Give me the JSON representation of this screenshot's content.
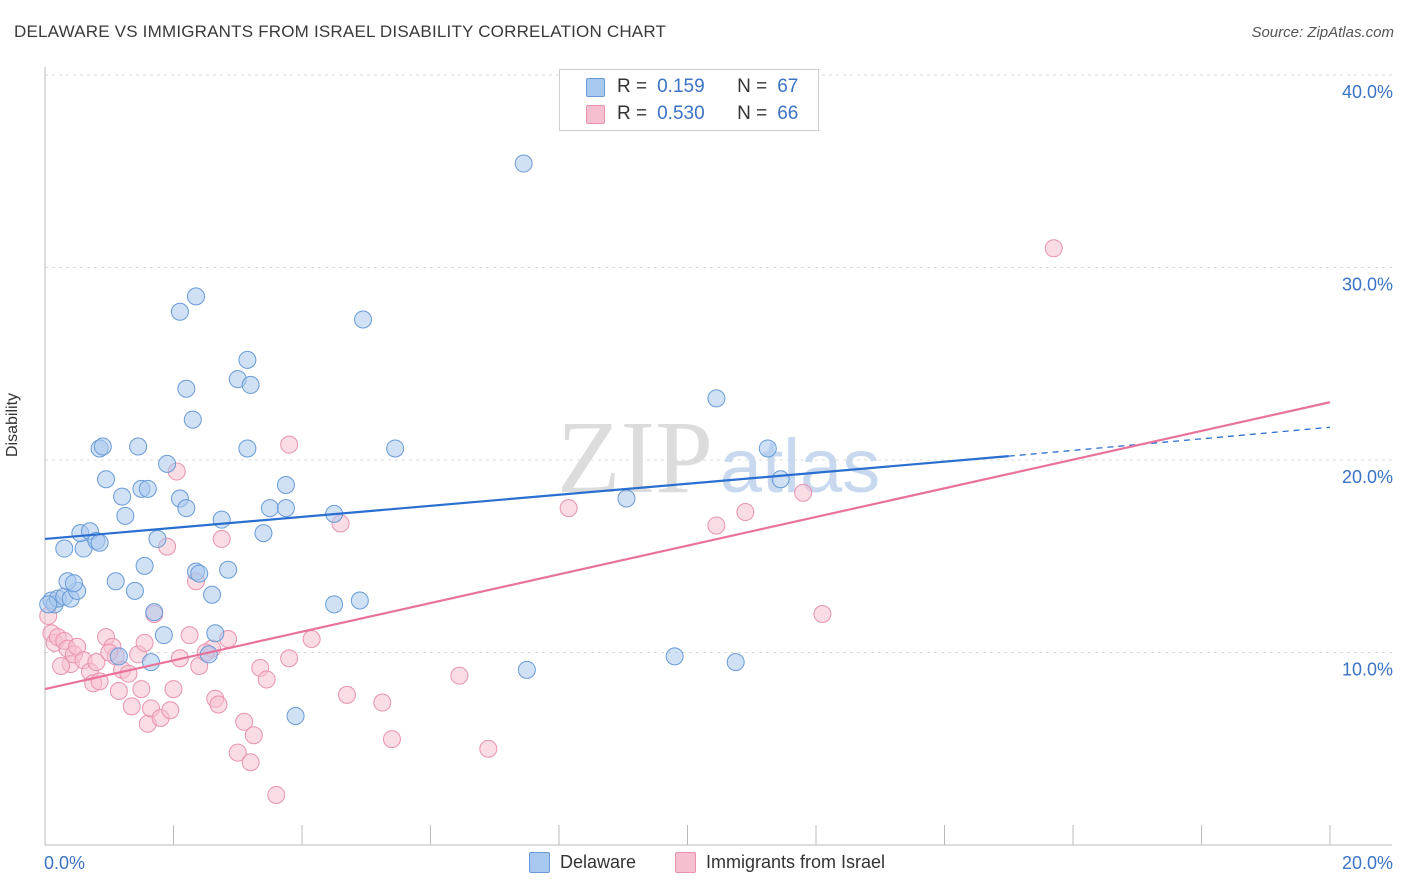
{
  "title": "DELAWARE VS IMMIGRANTS FROM ISRAEL DISABILITY CORRELATION CHART",
  "source": "Source: ZipAtlas.com",
  "watermark": {
    "zip": "ZIP",
    "atlas": "atlas"
  },
  "legend": {
    "rows": [
      {
        "r_label": "R =",
        "r_value": "0.159",
        "n_label": "N =",
        "n_value": "67"
      },
      {
        "r_label": "R =",
        "r_value": "0.530",
        "n_label": "N =",
        "n_value": "66"
      }
    ]
  },
  "colors": {
    "delaware_fill": "#a9c8ef",
    "delaware_stroke": "#6a9bd6",
    "delaware_line": "#2a6fd0",
    "israel_fill": "#f6bfd0",
    "israel_stroke": "#e993b0",
    "israel_line": "#e8739a",
    "axis_text": "#3b73c5"
  },
  "chart_data": {
    "type": "scatter",
    "title": "DELAWARE VS IMMIGRANTS FROM ISRAEL DISABILITY CORRELATION CHART",
    "xlabel": "",
    "ylabel": "Disability",
    "xlim": [
      0,
      20
    ],
    "ylim": [
      0,
      40
    ],
    "x_tick_labels": [
      "0.0%",
      "20.0%"
    ],
    "y_tick_labels": [
      "10.0%",
      "20.0%",
      "30.0%",
      "40.0%"
    ],
    "y_ticks": [
      10,
      20,
      30,
      40
    ],
    "series": [
      {
        "name": "Delaware",
        "R": 0.159,
        "N": 67,
        "trend": {
          "x": [
            0,
            15
          ],
          "y": [
            15.9,
            20.2
          ],
          "dashed_extension_to": [
            20,
            21.7
          ]
        },
        "points": [
          [
            0.1,
            12.7
          ],
          [
            0.15,
            12.5
          ],
          [
            0.2,
            12.8
          ],
          [
            0.3,
            12.9
          ],
          [
            0.4,
            12.8
          ],
          [
            0.5,
            13.2
          ],
          [
            0.35,
            13.7
          ],
          [
            0.45,
            13.6
          ],
          [
            0.3,
            15.4
          ],
          [
            0.6,
            15.4
          ],
          [
            0.55,
            16.2
          ],
          [
            0.7,
            16.3
          ],
          [
            0.8,
            15.8
          ],
          [
            0.85,
            15.7
          ],
          [
            1.1,
            13.7
          ],
          [
            1.4,
            13.2
          ],
          [
            1.7,
            12.1
          ],
          [
            1.85,
            10.9
          ],
          [
            1.65,
            9.5
          ],
          [
            1.15,
            9.8
          ],
          [
            1.55,
            14.5
          ],
          [
            1.75,
            15.9
          ],
          [
            1.25,
            17.1
          ],
          [
            1.2,
            18.1
          ],
          [
            0.95,
            19.0
          ],
          [
            0.85,
            20.6
          ],
          [
            0.9,
            20.7
          ],
          [
            1.45,
            20.7
          ],
          [
            1.5,
            18.5
          ],
          [
            1.6,
            18.5
          ],
          [
            1.9,
            19.8
          ],
          [
            2.1,
            18.0
          ],
          [
            2.2,
            17.5
          ],
          [
            2.35,
            14.2
          ],
          [
            2.4,
            14.1
          ],
          [
            2.6,
            13.0
          ],
          [
            2.65,
            11.0
          ],
          [
            2.55,
            9.9
          ],
          [
            2.85,
            14.3
          ],
          [
            2.75,
            16.9
          ],
          [
            2.2,
            23.7
          ],
          [
            2.3,
            22.1
          ],
          [
            2.1,
            27.7
          ],
          [
            2.35,
            28.5
          ],
          [
            3.0,
            24.2
          ],
          [
            3.2,
            23.9
          ],
          [
            3.15,
            25.2
          ],
          [
            3.15,
            20.6
          ],
          [
            3.4,
            16.2
          ],
          [
            3.5,
            17.5
          ],
          [
            3.75,
            17.5
          ],
          [
            3.75,
            18.7
          ],
          [
            3.9,
            6.7
          ],
          [
            4.5,
            12.5
          ],
          [
            4.5,
            17.2
          ],
          [
            4.95,
            27.3
          ],
          [
            4.9,
            12.7
          ],
          [
            5.45,
            20.6
          ],
          [
            7.45,
            35.4
          ],
          [
            7.5,
            9.1
          ],
          [
            9.05,
            18.0
          ],
          [
            9.8,
            9.8
          ],
          [
            10.45,
            23.2
          ],
          [
            10.75,
            9.5
          ],
          [
            11.25,
            20.6
          ],
          [
            11.45,
            19.0
          ],
          [
            0.05,
            12.5
          ]
        ]
      },
      {
        "name": "Immigrants from Israel",
        "R": 0.53,
        "N": 66,
        "trend": {
          "x": [
            0,
            20
          ],
          "y": [
            8.1,
            23.0
          ]
        },
        "points": [
          [
            0.05,
            11.9
          ],
          [
            0.1,
            11.0
          ],
          [
            0.15,
            10.5
          ],
          [
            0.2,
            10.8
          ],
          [
            0.3,
            10.6
          ],
          [
            0.35,
            10.2
          ],
          [
            0.4,
            9.4
          ],
          [
            0.45,
            9.9
          ],
          [
            0.5,
            10.3
          ],
          [
            0.6,
            9.6
          ],
          [
            0.7,
            9.0
          ],
          [
            0.75,
            8.4
          ],
          [
            0.8,
            9.5
          ],
          [
            0.85,
            8.5
          ],
          [
            0.95,
            10.8
          ],
          [
            1.05,
            10.3
          ],
          [
            1.1,
            9.8
          ],
          [
            1.15,
            8.0
          ],
          [
            1.2,
            9.1
          ],
          [
            1.3,
            8.9
          ],
          [
            1.35,
            7.2
          ],
          [
            1.45,
            9.9
          ],
          [
            1.5,
            8.1
          ],
          [
            1.55,
            10.5
          ],
          [
            1.6,
            6.3
          ],
          [
            1.65,
            7.1
          ],
          [
            1.7,
            12.0
          ],
          [
            1.8,
            6.6
          ],
          [
            1.9,
            15.5
          ],
          [
            1.95,
            7.0
          ],
          [
            2.0,
            8.1
          ],
          [
            2.1,
            9.7
          ],
          [
            2.05,
            19.4
          ],
          [
            2.25,
            10.9
          ],
          [
            2.35,
            13.7
          ],
          [
            2.4,
            9.3
          ],
          [
            2.6,
            10.2
          ],
          [
            2.65,
            7.6
          ],
          [
            2.7,
            7.3
          ],
          [
            2.75,
            15.9
          ],
          [
            2.85,
            10.7
          ],
          [
            3.0,
            4.8
          ],
          [
            3.1,
            6.4
          ],
          [
            3.2,
            4.3
          ],
          [
            3.25,
            5.7
          ],
          [
            3.35,
            9.2
          ],
          [
            3.45,
            8.6
          ],
          [
            3.6,
            2.6
          ],
          [
            3.8,
            9.7
          ],
          [
            3.8,
            20.8
          ],
          [
            4.15,
            10.7
          ],
          [
            4.6,
            16.7
          ],
          [
            4.7,
            7.8
          ],
          [
            5.25,
            7.4
          ],
          [
            5.4,
            5.5
          ],
          [
            6.45,
            8.8
          ],
          [
            6.9,
            5.0
          ],
          [
            8.15,
            17.5
          ],
          [
            10.45,
            16.6
          ],
          [
            10.9,
            17.3
          ],
          [
            11.8,
            18.3
          ],
          [
            12.1,
            12.0
          ],
          [
            15.7,
            31.0
          ],
          [
            0.25,
            9.3
          ],
          [
            1.0,
            10.0
          ],
          [
            2.5,
            10.0
          ]
        ]
      }
    ],
    "legend_labels": [
      "Delaware",
      "Immigrants from Israel"
    ]
  }
}
